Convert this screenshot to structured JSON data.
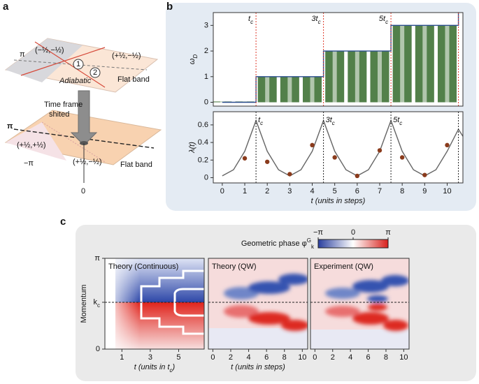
{
  "panel_a": {
    "letter": "a",
    "top_pi": "π",
    "top_left_state": "(−½,−½)",
    "top_right_state": "(+½,−½)",
    "step1": "1",
    "step2": "2",
    "adiabatic": "Adiabatic",
    "top_flat_band": "Flat band",
    "shift_label": [
      "Time frame",
      "shited"
    ],
    "bottom_pi": "π",
    "bottom_left_state": "(+½,+½)",
    "bottom_center_state": "(+½,−½)",
    "bottom_minus_pi": "−π",
    "bottom_zero": "0",
    "bottom_flat_band": "Flat band"
  },
  "panel_b": {
    "letter": "b"
  },
  "panel_c": {
    "letter": "c"
  },
  "chart_data": [
    {
      "type": "bar",
      "ylabel": {
        "text": "ω",
        "sub": "D"
      },
      "x": [
        0,
        1,
        2,
        3,
        4,
        5,
        6,
        7,
        8,
        9,
        10
      ],
      "values": [
        0.03,
        0.03,
        1,
        1,
        1,
        2,
        2,
        2,
        3,
        3,
        3
      ],
      "color": "#52804a",
      "lines": [
        {
          "x": [
            0,
            1.5,
            1.5,
            4.5,
            4.5,
            7.5,
            7.5,
            10.5,
            10.5,
            10.5
          ],
          "values": [
            0,
            0,
            1,
            1,
            2,
            2,
            3,
            3,
            3.5,
            3.5
          ],
          "color": "#2a4d8f"
        }
      ],
      "vlines": {
        "x": [
          1.5,
          4.5,
          7.5,
          10.5
        ],
        "color": "#e03a2a"
      },
      "annotations": [
        {
          "text": "t",
          "sub": "c"
        },
        {
          "text": "3t",
          "sub": "c"
        },
        {
          "text": "5t",
          "sub": "c"
        }
      ],
      "xlim": [
        -0.4,
        10.7
      ],
      "ylim": [
        -0.15,
        3.5
      ],
      "yticks": [
        0,
        1,
        2,
        3
      ]
    },
    {
      "type": "line",
      "ylabel": {
        "text": "λ(t)"
      },
      "xlabel": "t (units in steps)",
      "x": [
        0,
        0.5,
        1,
        1.5,
        2,
        2.5,
        3,
        3.5,
        4,
        4.5,
        5,
        5.5,
        6,
        6.5,
        7,
        7.5,
        8,
        8.5,
        9,
        9.5,
        10,
        10.5,
        10.7
      ],
      "values": [
        0.02,
        0.09,
        0.3,
        0.65,
        0.3,
        0.09,
        0.02,
        0.09,
        0.3,
        0.65,
        0.3,
        0.09,
        0.02,
        0.09,
        0.3,
        0.65,
        0.3,
        0.09,
        0.02,
        0.09,
        0.3,
        0.55,
        0.47
      ],
      "color": "#666666",
      "points": {
        "x": [
          1,
          2,
          3,
          4,
          5,
          6,
          7,
          8,
          9,
          10
        ],
        "values": [
          0.22,
          0.18,
          0.04,
          0.37,
          0.23,
          0.02,
          0.31,
          0.23,
          0.03,
          0.37
        ],
        "color": "#8a3b1c"
      },
      "vlines": {
        "x": [
          1.5,
          4.5,
          7.5,
          10.5
        ],
        "color": "#222222"
      },
      "annotations": [
        {
          "text": "t",
          "sub": "c"
        },
        {
          "text": "3t",
          "sub": "c"
        },
        {
          "text": "5t",
          "sub": "c"
        }
      ],
      "xlim": [
        -0.4,
        10.7
      ],
      "ylim": [
        -0.06,
        0.75
      ],
      "xticks": [
        0,
        1,
        2,
        3,
        4,
        5,
        6,
        7,
        8,
        9,
        10
      ],
      "yticks": [
        0.0,
        0.2,
        0.4,
        0.6
      ]
    },
    {
      "type": "heatmap",
      "title": "Theory (Continuous)",
      "ylabel": "Momentum",
      "xlabel": {
        "text": "t (units in t",
        "sub": "c",
        "end": ")"
      },
      "xlim": [
        -0.2,
        6.8
      ],
      "xticks": [
        1,
        3,
        5
      ],
      "ylim": [
        0,
        3.1416
      ],
      "yticks": [
        {
          "value": 0,
          "label": "0"
        },
        {
          "value": 1.62,
          "label": "k",
          "sub": "c"
        },
        {
          "value": 3.1416,
          "label": "π"
        }
      ],
      "kline": 1.62
    },
    {
      "type": "heatmap",
      "title": "Theory (QW)",
      "xlabel": {
        "text": "t (units in steps)"
      },
      "xlim": [
        -0.5,
        10.6
      ],
      "xticks": [
        0,
        2,
        4,
        6,
        8,
        10
      ],
      "ylim": [
        0,
        3.1416
      ],
      "kline": 1.62,
      "colorbar": {
        "label": "Geometric phase φ",
        "sup": "G",
        "sub": "k",
        "lim": [
          -3.1416,
          3.1416
        ],
        "ticks": [
          {
            "value": -3.1416,
            "label": "−π"
          },
          0,
          {
            "value": 3.1416,
            "label": "π"
          }
        ],
        "colors": [
          "#2a3f9e",
          "#ffffff",
          "#d8211c"
        ]
      }
    },
    {
      "type": "heatmap",
      "title": "Experiment (QW)",
      "xlim": [
        -0.5,
        10.6
      ],
      "xticks": [
        0,
        2,
        4,
        6,
        8,
        10
      ],
      "ylim": [
        0,
        3.1416
      ],
      "kline": 1.62
    }
  ]
}
